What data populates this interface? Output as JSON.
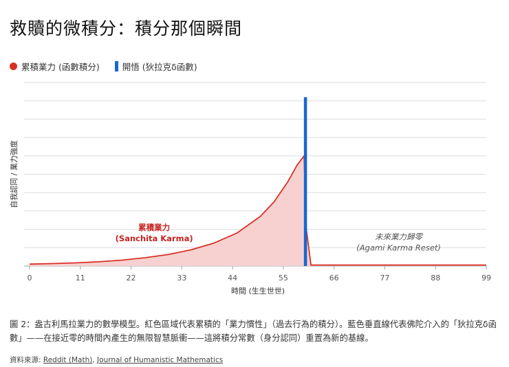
{
  "title": "救贖的微積分：積分那個瞬間",
  "legend": [
    {
      "label": "累積業力 (函數積分)",
      "color": "#d93025",
      "shape": "dot"
    },
    {
      "label": "開悟 (狄拉克δ函數)",
      "color": "#1967d2",
      "shape": "bar"
    }
  ],
  "chart_data": {
    "type": "area",
    "ylabel": "自我認同 / 業力強度",
    "xlabel": "時間 (生生世世)",
    "x_ticks": [
      0,
      11,
      22,
      33,
      44,
      55,
      66,
      77,
      88,
      99
    ],
    "xlim": [
      0,
      99
    ],
    "ylim": [
      0,
      10
    ],
    "grid": true,
    "series": [
      {
        "name": "累積業力 (函數積分)",
        "color": "#d93025",
        "fill": "#f6d1cf",
        "x": [
          0,
          5,
          10,
          15,
          20,
          25,
          30,
          35,
          40,
          45,
          50,
          53,
          56,
          58,
          59.5,
          60,
          61,
          70,
          80,
          90,
          99
        ],
        "y": [
          0.1,
          0.13,
          0.17,
          0.23,
          0.32,
          0.45,
          0.62,
          0.88,
          1.25,
          1.8,
          2.7,
          3.5,
          4.6,
          5.5,
          6.0,
          2.0,
          0.05,
          0.05,
          0.05,
          0.05,
          0.05
        ]
      },
      {
        "name": "開悟 (狄拉克δ函數)",
        "color": "#1967d2",
        "x": [
          59.8
        ],
        "y": [
          9.2
        ]
      }
    ],
    "annotations": [
      {
        "line1": "累積業力",
        "line2": "(Sanchita Karma)",
        "x": 27,
        "y": 1.2,
        "color": "#c5221f",
        "style": "bold"
      },
      {
        "line1": "未來業力歸零",
        "line2": "(Agami Karma Reset)",
        "x": 80,
        "y": 0.7,
        "color": "#555555",
        "style": "italic"
      }
    ]
  },
  "caption": "圖 2：盎古利馬拉業力的數學模型。紅色區域代表累積的「業力慣性」（過去行為的積分）。藍色垂直線代表佛陀介入的「狄拉克δ函數」——在接近零的時間內產生的無限智慧脈衝——這將積分常數（身分認同）重置為新的基線。",
  "source": {
    "prefix": "資料來源: ",
    "links": [
      "Reddit (Math)",
      "Journal of Humanistic Mathematics"
    ],
    "separator": ", "
  }
}
